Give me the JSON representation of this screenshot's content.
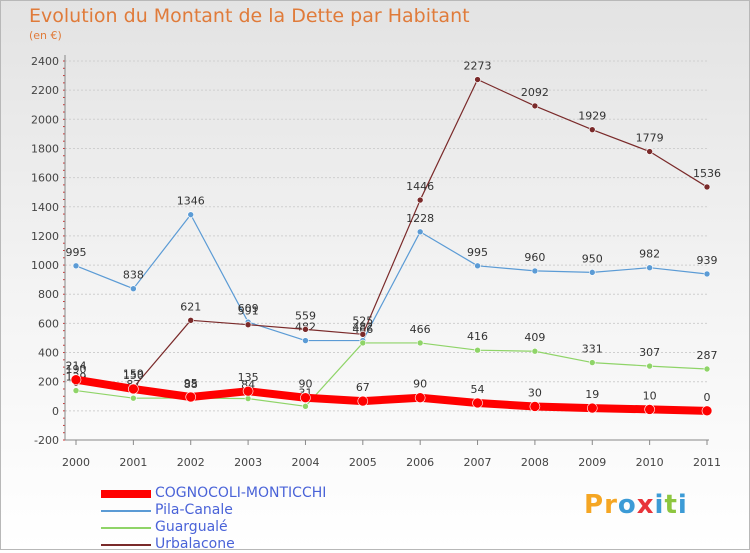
{
  "title": "Evolution du Montant de la Dette par Habitant",
  "subtitle": "(en €)",
  "logo": {
    "text": "Proxiti",
    "colors": [
      "#f5a623",
      "#f5a623",
      "#3c9bd6",
      "#e8343a",
      "#3c9bd6",
      "#8dc63f",
      "#3c9bd6"
    ]
  },
  "chart_data": {
    "type": "line",
    "x": [
      "2000",
      "2001",
      "2002",
      "2003",
      "2004",
      "2005",
      "2006",
      "2007",
      "2008",
      "2009",
      "2010",
      "2011"
    ],
    "yticks": [
      "-200",
      "0",
      "200",
      "400",
      "600",
      "800",
      "1000",
      "1200",
      "1400",
      "1600",
      "1800",
      "2000",
      "2200",
      "2400"
    ],
    "ylim": [
      -200,
      2400
    ],
    "grid": true,
    "legend_position": "bottom-left",
    "series": [
      {
        "name": "Pila-Canale",
        "color": "#5b9bd5",
        "width": 1.2,
        "values": [
          995,
          838,
          1346,
          609,
          482,
          482,
          1228,
          995,
          960,
          950,
          982,
          939
        ],
        "labels": [
          "995",
          "838",
          "1346",
          "609",
          "482",
          "482",
          "1228",
          "995",
          "960",
          "950",
          "982",
          "939"
        ]
      },
      {
        "name": "Guargualé",
        "color": "#8fd468",
        "width": 1.2,
        "values": [
          139,
          87,
          88,
          84,
          31,
          466,
          466,
          416,
          409,
          331,
          307,
          287
        ],
        "labels": [
          "139",
          "87",
          "88",
          "84",
          "31",
          "466",
          "466",
          "416",
          "409",
          "331",
          "307",
          "287"
        ]
      },
      {
        "name": "Urbalacone",
        "color": "#7a2a2a",
        "width": 1.2,
        "values": [
          190,
          159,
          621,
          591,
          559,
          525,
          1446,
          2273,
          2092,
          1929,
          1779,
          1536
        ],
        "labels": [
          "190",
          "159",
          "621",
          "591",
          "559",
          "525",
          "1446",
          "2273",
          "2092",
          "1929",
          "1779",
          "1536"
        ]
      },
      {
        "name": "COGNOCOLI-MONTICCHI",
        "color": "#ff0000",
        "width": 8,
        "values": [
          214,
          150,
          95,
          135,
          90,
          67,
          90,
          54,
          30,
          19,
          10,
          0
        ],
        "labels": [
          "214",
          "150",
          "95",
          "135",
          "90",
          "67",
          "90",
          "54",
          "30",
          "19",
          "10",
          "0"
        ]
      }
    ],
    "legend": [
      {
        "name": "COGNOCOLI-MONTICCHI",
        "color": "#ff0000",
        "thickness": 8
      },
      {
        "name": "Pila-Canale",
        "color": "#5b9bd5",
        "thickness": 2
      },
      {
        "name": "Guargualé",
        "color": "#8fd468",
        "thickness": 2
      },
      {
        "name": "Urbalacone",
        "color": "#7a2a2a",
        "thickness": 2
      }
    ]
  }
}
